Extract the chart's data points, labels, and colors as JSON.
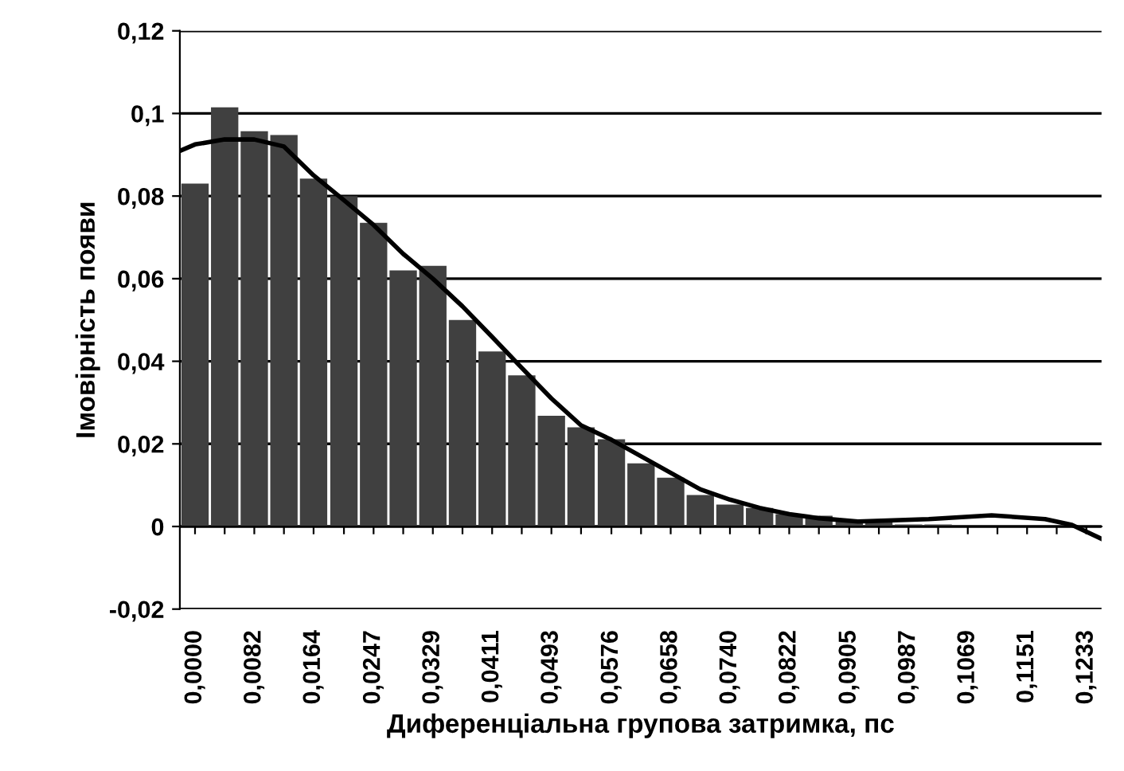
{
  "chart_data": {
    "type": "bar",
    "xlabel": "Диференціальна групова затримка, пс",
    "ylabel": "Імовірність появи",
    "x": [
      0.0,
      0.0041,
      0.0082,
      0.0123,
      0.0164,
      0.0206,
      0.0247,
      0.0288,
      0.0329,
      0.037,
      0.0411,
      0.0452,
      0.0493,
      0.0534,
      0.0576,
      0.0617,
      0.0658,
      0.0699,
      0.074,
      0.0781,
      0.0822,
      0.0863,
      0.0905,
      0.0946,
      0.0987,
      0.1028,
      0.1069,
      0.111,
      0.1151,
      0.1192,
      0.1233
    ],
    "series": [
      {
        "color": "#404040",
        "values": [
          0.083,
          0.1015,
          0.0957,
          0.0948,
          0.0842,
          0.08,
          0.0735,
          0.062,
          0.0631,
          0.05,
          0.0424,
          0.0366,
          0.0268,
          0.024,
          0.0211,
          0.0153,
          0.0118,
          0.0076,
          0.0053,
          0.0045,
          0.003,
          0.0026,
          0.0014,
          0.001,
          0.0005,
          0.0005,
          0.0003,
          0.0002,
          0.0001,
          0,
          0
        ]
      },
      {
        "type": "line",
        "color": "#000000",
        "x": [
          -0.002,
          0.0,
          0.0041,
          0.0082,
          0.0123,
          0.0164,
          0.0206,
          0.0247,
          0.0288,
          0.0329,
          0.037,
          0.0411,
          0.0452,
          0.0493,
          0.0534,
          0.0576,
          0.0617,
          0.0658,
          0.0699,
          0.074,
          0.0781,
          0.0822,
          0.0863,
          0.0917,
          0.1015,
          0.1102,
          0.1176,
          0.1213,
          0.1254
        ],
        "values": [
          0.091,
          0.0925,
          0.0937,
          0.0937,
          0.092,
          0.085,
          0.079,
          0.073,
          0.066,
          0.06,
          0.0533,
          0.0459,
          0.0384,
          0.031,
          0.0245,
          0.021,
          0.017,
          0.013,
          0.009,
          0.0065,
          0.0045,
          0.003,
          0.002,
          0.0012,
          0.0018,
          0.0027,
          0.0018,
          0.0004,
          -0.003
        ]
      }
    ],
    "xlim": [
      -0.0021,
      0.1254
    ],
    "xticks": [
      {
        "value": 0.0,
        "label": "0,0000"
      },
      {
        "value": 0.0041,
        "label": null
      },
      {
        "value": 0.0082,
        "label": "0,0082"
      },
      {
        "value": 0.0123,
        "label": null
      },
      {
        "value": 0.0164,
        "label": "0,0164"
      },
      {
        "value": 0.0206,
        "label": null
      },
      {
        "value": 0.0247,
        "label": "0,0247"
      },
      {
        "value": 0.0288,
        "label": null
      },
      {
        "value": 0.0329,
        "label": "0,0329"
      },
      {
        "value": 0.037,
        "label": null
      },
      {
        "value": 0.0411,
        "label": "0,0411"
      },
      {
        "value": 0.0452,
        "label": null
      },
      {
        "value": 0.0493,
        "label": "0,0493"
      },
      {
        "value": 0.0534,
        "label": null
      },
      {
        "value": 0.0576,
        "label": "0,0576"
      },
      {
        "value": 0.0617,
        "label": null
      },
      {
        "value": 0.0658,
        "label": "0,0658"
      },
      {
        "value": 0.0699,
        "label": null
      },
      {
        "value": 0.074,
        "label": "0,0740"
      },
      {
        "value": 0.0781,
        "label": null
      },
      {
        "value": 0.0822,
        "label": "0,0822"
      },
      {
        "value": 0.0863,
        "label": null
      },
      {
        "value": 0.0905,
        "label": "0,0905"
      },
      {
        "value": 0.0946,
        "label": null
      },
      {
        "value": 0.0987,
        "label": "0,0987"
      },
      {
        "value": 0.1028,
        "label": null
      },
      {
        "value": 0.1069,
        "label": "0,1069"
      },
      {
        "value": 0.111,
        "label": null
      },
      {
        "value": 0.1151,
        "label": "0,1151"
      },
      {
        "value": 0.1192,
        "label": null
      },
      {
        "value": 0.1233,
        "label": "0,1233"
      }
    ],
    "ylim": [
      -0.02,
      0.12
    ],
    "yticks": [
      {
        "value": -0.02,
        "label": "-0,02"
      },
      {
        "value": 0,
        "label": "0"
      },
      {
        "value": 0.02,
        "label": "0,02"
      },
      {
        "value": 0.04,
        "label": "0,04"
      },
      {
        "value": 0.06,
        "label": "0,06"
      },
      {
        "value": 0.08,
        "label": "0,08"
      },
      {
        "value": 0.1,
        "label": "0,1"
      },
      {
        "value": 0.12,
        "label": "0,12"
      }
    ],
    "grid": "y",
    "legend": false
  }
}
